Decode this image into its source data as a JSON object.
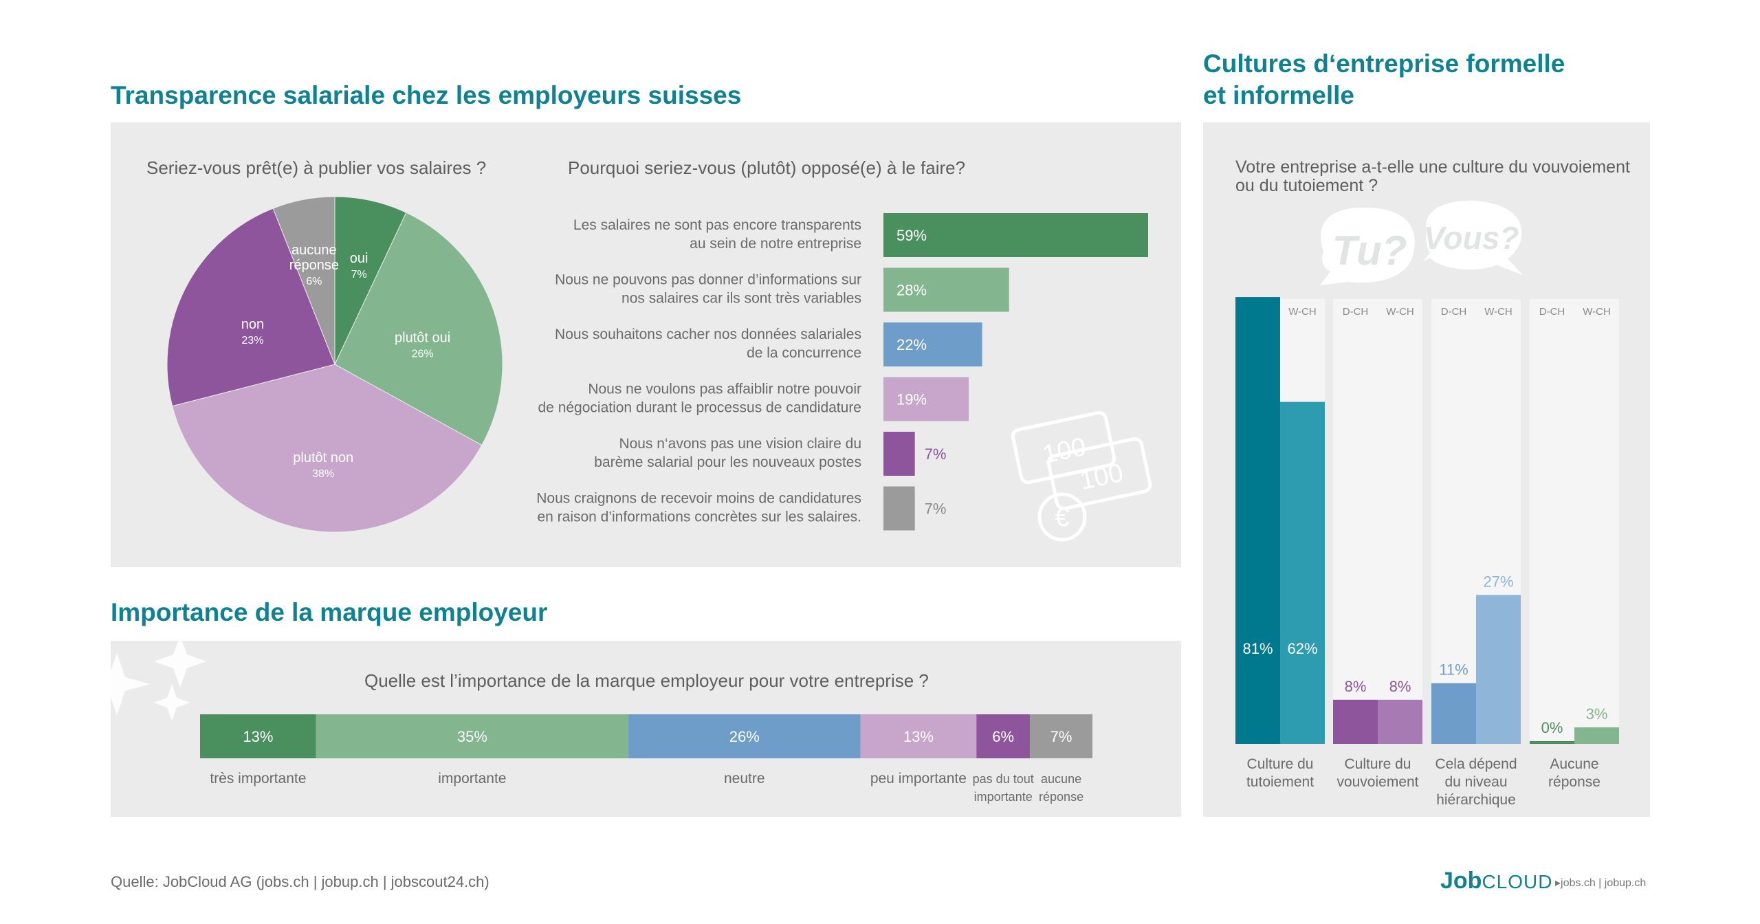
{
  "titles": {
    "transparency": "Transparence salariale chez les employeurs suisses",
    "brand": "Importance de la marque employeur",
    "culture_line1": "Cultures d‘entreprise formelle",
    "culture_line2": "et informelle"
  },
  "questions": {
    "publish": "Seriez-vous prêt(e) à publier vos salaires ?",
    "why": "Pourquoi seriez-vous (plutôt) opposé(e) à le faire?",
    "brand": "Quelle est l’importance de la marque employeur pour votre entreprise ?",
    "culture_line1": "Votre entreprise a-t-elle une culture du vouvoiement",
    "culture_line2": "ou du tutoiement ?"
  },
  "bubbles": {
    "tu": "Tu?",
    "vous": "Vous?"
  },
  "money": {
    "note1": "100",
    "note2": "100",
    "coin": "€"
  },
  "footer": {
    "source": "Quelle: JobCloud AG (jobs.ch  |  jobup.ch  |  jobscout24.ch)"
  },
  "logo": {
    "job": "Job",
    "cloud": "CLOUD",
    "links": "▸jobs.ch | jobup.ch"
  },
  "colors": {
    "dark_green": "#4a8f5e",
    "light_green": "#83b68e",
    "blue": "#6d9dc8",
    "light_purple": "#c8a6cc",
    "purple": "#8e559c",
    "gray": "#9b9b9b",
    "teal_dark": "#00798f",
    "teal": "#2e9cb0",
    "light_blue": "#8fb5d8",
    "mid_purple": "#a77ab3",
    "title": "#0e8192"
  },
  "chart_data": [
    {
      "type": "pie",
      "title": "Seriez-vous prêt(e) à publier vos salaires ?",
      "slices": [
        {
          "name": "oui",
          "value": 7,
          "label": "7%",
          "color": "#4a8f5e"
        },
        {
          "name": "plutôt oui",
          "value": 26,
          "label": "26%",
          "color": "#83b68e"
        },
        {
          "name": "plutôt non",
          "value": 38,
          "label": "38%",
          "color": "#c8a6cc"
        },
        {
          "name": "non",
          "value": 23,
          "label": "23%",
          "color": "#8e559c"
        },
        {
          "name": "aucune réponse",
          "name_lines": [
            "aucune",
            "réponse"
          ],
          "value": 6,
          "label": "6%",
          "color": "#9b9b9b"
        }
      ]
    },
    {
      "type": "bar",
      "orientation": "horizontal",
      "title": "Pourquoi seriez-vous (plutôt) opposé(e) à le faire?",
      "xlim": [
        0,
        59
      ],
      "bars": [
        {
          "lines": [
            "Les salaires ne sont pas encore transparents",
            "au sein de notre entreprise"
          ],
          "value": 59,
          "label": "59%",
          "color": "#4a8f5e",
          "label_inside": true
        },
        {
          "lines": [
            "Nous ne pouvons pas donner d’informations sur",
            "nos salaires car ils sont très variables"
          ],
          "value": 28,
          "label": "28%",
          "color": "#83b68e",
          "label_inside": true
        },
        {
          "lines": [
            "Nous souhaitons cacher nos données salariales",
            "de la concurrence"
          ],
          "value": 22,
          "label": "22%",
          "color": "#6d9dc8",
          "label_inside": true
        },
        {
          "lines": [
            "Nous ne voulons pas affaiblir notre pouvoir",
            "de négociation durant le processus de candidature"
          ],
          "value": 19,
          "label": "19%",
          "color": "#c8a6cc",
          "label_inside": true
        },
        {
          "lines": [
            "Nous n‘avons pas une vision claire du",
            "barème salarial pour les nouveaux postes"
          ],
          "value": 7,
          "label": "7%",
          "color": "#8e559c",
          "label_inside": false
        },
        {
          "lines": [
            "Nous craignons de recevoir moins de candidatures",
            "en raison d’informations concrètes sur les salaires."
          ],
          "value": 7,
          "label": "7%",
          "color": "#9b9b9b",
          "label_inside": false
        }
      ]
    },
    {
      "type": "bar",
      "orientation": "stacked-horizontal",
      "title": "Quelle est l’importance de la marque employeur pour votre entreprise ?",
      "segments": [
        {
          "name_lines": [
            "très importante"
          ],
          "value": 13,
          "label": "13%",
          "color": "#4a8f5e"
        },
        {
          "name_lines": [
            "importante"
          ],
          "value": 35,
          "label": "35%",
          "color": "#83b68e"
        },
        {
          "name_lines": [
            "neutre"
          ],
          "value": 26,
          "label": "26%",
          "color": "#6d9dc8"
        },
        {
          "name_lines": [
            "peu importante"
          ],
          "value": 13,
          "label": "13%",
          "color": "#c8a6cc"
        },
        {
          "name_lines": [
            "pas du tout",
            "importante"
          ],
          "value": 6,
          "label": "6%",
          "color": "#8e559c"
        },
        {
          "name_lines": [
            "aucune",
            "réponse"
          ],
          "value": 7,
          "label": "7%",
          "color": "#9b9b9b"
        }
      ]
    },
    {
      "type": "bar",
      "orientation": "vertical-grouped",
      "title": "Votre entreprise a-t-elle une culture du vouvoiement ou du tutoiement ?",
      "ylim": [
        0,
        100
      ],
      "series_names": [
        "D-CH",
        "W-CH"
      ],
      "groups": [
        {
          "name_lines": [
            "Culture du",
            "tutoiement"
          ],
          "values": [
            81,
            62
          ],
          "labels": [
            "81%",
            "62%"
          ],
          "colors": [
            "#00798f",
            "#2e9cb0"
          ],
          "label_color": "#ffffff",
          "label_inside": true
        },
        {
          "name_lines": [
            "Culture du",
            "vouvoiement"
          ],
          "values": [
            8,
            8
          ],
          "labels": [
            "8%",
            "8%"
          ],
          "colors": [
            "#8e559c",
            "#a77ab3"
          ],
          "label_color": "#8e559c",
          "label_inside": false
        },
        {
          "name_lines": [
            "Cela dépend",
            "du niveau",
            "hiérarchique"
          ],
          "values": [
            11,
            27
          ],
          "labels": [
            "11%",
            "27%"
          ],
          "colors": [
            "#6d9dc8",
            "#8fb5d8"
          ],
          "label_color": "#6d9dc8",
          "label_inside": false
        },
        {
          "name_lines": [
            "Aucune",
            "réponse"
          ],
          "values": [
            0,
            3
          ],
          "labels": [
            "0%",
            "3%"
          ],
          "colors": [
            "#4a8f5e",
            "#83b68e"
          ],
          "label_color": "#4a8f5e",
          "label_inside": false
        }
      ]
    }
  ]
}
